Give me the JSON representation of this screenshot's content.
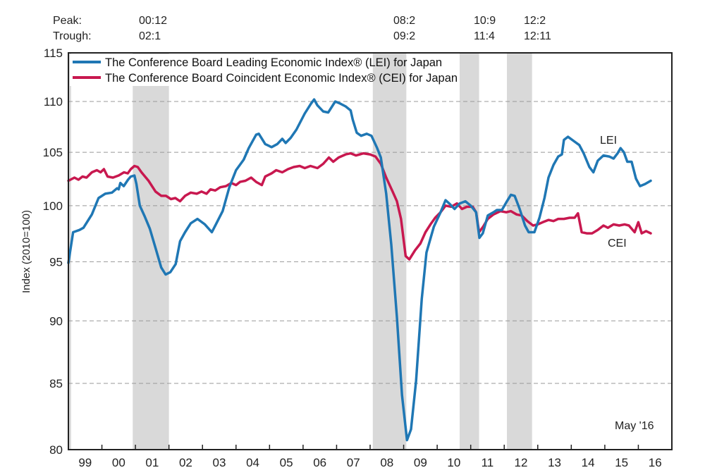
{
  "chart_data": {
    "type": "line",
    "title": "",
    "xlabel": "",
    "ylabel": "Index (2010=100)",
    "yscale": "log",
    "ylim": [
      80,
      115
    ],
    "xlim": [
      1999.0,
      2017.0
    ],
    "yticks": [
      80,
      85,
      90,
      95,
      100,
      105,
      110,
      115
    ],
    "grid": "horizontal dashed",
    "xtick_labels": [
      "99",
      "00",
      "01",
      "02",
      "03",
      "04",
      "05",
      "06",
      "07",
      "08",
      "09",
      "10",
      "11",
      "12",
      "13",
      "14",
      "15",
      "16"
    ],
    "legend": {
      "placement": "top-left",
      "entries": [
        "The Conference Board Leading Economic Index® (LEI) for Japan",
        "The Conference Board Coincident Economic Index® (CEI) for Japan"
      ]
    },
    "turning_points": {
      "peak_label": "Peak:",
      "trough_label": "Trough:",
      "cycles": [
        {
          "peak": "00:12",
          "trough": "02:1"
        },
        {
          "peak": "08:2",
          "trough": "09:2"
        },
        {
          "peak": "10:9",
          "trough": "11:4"
        },
        {
          "peak": "12:2",
          "trough": "12:11"
        }
      ]
    },
    "recessions": [
      {
        "start": 1999.0,
        "end": 1999.08
      },
      {
        "start": 2000.92,
        "end": 2002.0
      },
      {
        "start": 2008.08,
        "end": 2009.08
      },
      {
        "start": 2010.67,
        "end": 2011.25
      },
      {
        "start": 2012.08,
        "end": 2012.83
      }
    ],
    "annotations": [
      {
        "text": "LEI",
        "x": 2013.9,
        "y": 105.1
      },
      {
        "text": "CEI",
        "x": 2014.35,
        "y": 96.1
      },
      {
        "text": "May '16",
        "position": "bottom-right"
      }
    ],
    "series": [
      {
        "name": "LEI",
        "color": "#1f77b4",
        "x": [
          1999.0,
          1999.14,
          1999.33,
          1999.45,
          1999.7,
          1999.9,
          2000.1,
          2000.3,
          2000.45,
          2000.5,
          2000.55,
          2000.65,
          2000.78,
          2000.86,
          2000.97,
          2001.03,
          2001.13,
          2001.28,
          2001.43,
          2001.6,
          2001.77,
          2001.9,
          2002.04,
          2002.2,
          2002.33,
          2002.48,
          2002.65,
          2002.85,
          2003.07,
          2003.28,
          2003.4,
          2003.6,
          2003.8,
          2004.0,
          2004.23,
          2004.38,
          2004.6,
          2004.68,
          2004.87,
          2005.06,
          2005.23,
          2005.38,
          2005.48,
          2005.63,
          2005.8,
          2006.05,
          2006.24,
          2006.33,
          2006.43,
          2006.6,
          2006.75,
          2006.96,
          2007.1,
          2007.27,
          2007.42,
          2007.48,
          2007.6,
          2007.73,
          2007.9,
          2008.04,
          2008.21,
          2008.32,
          2008.48,
          2008.63,
          2008.8,
          2008.95,
          2009.1,
          2009.22,
          2009.37,
          2009.54,
          2009.68,
          2009.9,
          2010.1,
          2010.25,
          2010.36,
          2010.52,
          2010.67,
          2010.84,
          2011.0,
          2011.16,
          2011.26,
          2011.36,
          2011.51,
          2011.68,
          2011.78,
          2011.93,
          2012.06,
          2012.2,
          2012.31,
          2012.46,
          2012.62,
          2012.73,
          2012.9,
          2013.05,
          2013.2,
          2013.32,
          2013.47,
          2013.61,
          2013.72,
          2013.78,
          2013.9,
          2014.07,
          2014.24,
          2014.37,
          2014.54,
          2014.66,
          2014.79,
          2014.96,
          2015.13,
          2015.26,
          2015.38,
          2015.47,
          2015.57,
          2015.67,
          2015.8,
          2015.93,
          2016.05,
          2016.2,
          2016.37
        ],
        "values": [
          94.9,
          97.6,
          97.8,
          98.0,
          99.2,
          100.7,
          101.1,
          101.2,
          101.6,
          101.5,
          102.1,
          101.8,
          102.4,
          102.7,
          102.8,
          102.0,
          100.0,
          99.0,
          97.9,
          96.2,
          94.5,
          93.9,
          94.1,
          94.8,
          96.8,
          97.6,
          98.4,
          98.8,
          98.3,
          97.6,
          98.3,
          99.5,
          101.7,
          103.3,
          104.3,
          105.4,
          106.7,
          106.8,
          105.8,
          105.5,
          105.8,
          106.3,
          105.9,
          106.4,
          107.2,
          108.8,
          109.8,
          110.2,
          109.6,
          109.0,
          108.9,
          110.0,
          109.8,
          109.5,
          109.1,
          108.2,
          106.9,
          106.6,
          106.8,
          106.6,
          105.4,
          104.5,
          101.1,
          96.5,
          90.3,
          84.1,
          80.7,
          81.5,
          85.2,
          91.8,
          95.8,
          98.1,
          99.4,
          100.5,
          100.2,
          99.7,
          100.2,
          100.4,
          100.0,
          99.4,
          97.1,
          97.5,
          99.1,
          99.4,
          99.6,
          99.6,
          100.3,
          101.0,
          100.9,
          99.7,
          98.2,
          97.6,
          97.6,
          98.9,
          100.7,
          102.6,
          103.8,
          104.6,
          104.8,
          106.2,
          106.5,
          106.1,
          105.7,
          104.9,
          103.6,
          103.1,
          104.2,
          104.7,
          104.6,
          104.4,
          104.9,
          105.4,
          105.0,
          104.1,
          104.1,
          102.5,
          101.8,
          102.0,
          102.3
        ]
      },
      {
        "name": "CEI",
        "color": "#c8184f",
        "x": [
          1999.0,
          1999.18,
          1999.3,
          1999.42,
          1999.54,
          1999.7,
          1999.85,
          1999.96,
          2000.06,
          2000.17,
          2000.33,
          2000.5,
          2000.66,
          2000.77,
          2000.86,
          2000.97,
          2001.07,
          2001.18,
          2001.39,
          2001.6,
          2001.77,
          2001.91,
          2002.06,
          2002.19,
          2002.33,
          2002.48,
          2002.65,
          2002.83,
          2002.97,
          2003.12,
          2003.24,
          2003.38,
          2003.53,
          2003.7,
          2003.86,
          2004.0,
          2004.12,
          2004.28,
          2004.45,
          2004.6,
          2004.77,
          2004.87,
          2005.06,
          2005.2,
          2005.38,
          2005.55,
          2005.72,
          2005.9,
          2006.05,
          2006.22,
          2006.43,
          2006.6,
          2006.77,
          2006.9,
          2007.06,
          2007.27,
          2007.42,
          2007.58,
          2007.8,
          2008.0,
          2008.16,
          2008.32,
          2008.48,
          2008.67,
          2008.8,
          2008.92,
          2009.06,
          2009.17,
          2009.34,
          2009.5,
          2009.65,
          2009.8,
          2009.94,
          2010.1,
          2010.25,
          2010.42,
          2010.59,
          2010.74,
          2010.89,
          2011.06,
          2011.16,
          2011.25,
          2011.37,
          2011.51,
          2011.68,
          2011.89,
          2012.06,
          2012.2,
          2012.37,
          2012.52,
          2012.69,
          2012.86,
          2013.0,
          2013.15,
          2013.32,
          2013.47,
          2013.61,
          2013.78,
          2013.95,
          2014.1,
          2014.2,
          2014.31,
          2014.46,
          2014.62,
          2014.79,
          2014.96,
          2015.09,
          2015.26,
          2015.43,
          2015.59,
          2015.72,
          2015.89,
          2016.0,
          2016.1,
          2016.23,
          2016.37
        ],
        "values": [
          102.3,
          102.6,
          102.4,
          102.7,
          102.6,
          103.1,
          103.3,
          103.1,
          103.4,
          102.7,
          102.6,
          102.8,
          103.1,
          103.0,
          103.4,
          103.7,
          103.6,
          103.1,
          102.3,
          101.3,
          100.9,
          100.9,
          100.6,
          100.7,
          100.4,
          100.9,
          101.2,
          101.1,
          101.3,
          101.1,
          101.5,
          101.4,
          101.7,
          101.8,
          102.1,
          101.9,
          102.2,
          102.3,
          102.6,
          102.2,
          101.9,
          102.7,
          103.0,
          103.3,
          103.1,
          103.4,
          103.6,
          103.7,
          103.5,
          103.7,
          103.5,
          103.9,
          104.5,
          104.1,
          104.5,
          104.8,
          104.9,
          104.7,
          104.9,
          104.8,
          104.6,
          103.9,
          102.6,
          101.3,
          100.4,
          98.8,
          95.5,
          95.2,
          96.0,
          96.6,
          97.6,
          98.3,
          98.9,
          99.4,
          100.0,
          99.9,
          100.2,
          99.7,
          99.9,
          99.9,
          99.4,
          97.6,
          98.1,
          98.8,
          99.2,
          99.5,
          99.4,
          99.5,
          99.2,
          99.1,
          98.6,
          98.2,
          98.3,
          98.5,
          98.7,
          98.6,
          98.8,
          98.8,
          98.9,
          98.9,
          99.3,
          97.6,
          97.5,
          97.5,
          97.8,
          98.2,
          98.0,
          98.3,
          98.2,
          98.3,
          98.2,
          97.6,
          98.5,
          97.5,
          97.7,
          97.5
        ]
      }
    ]
  }
}
